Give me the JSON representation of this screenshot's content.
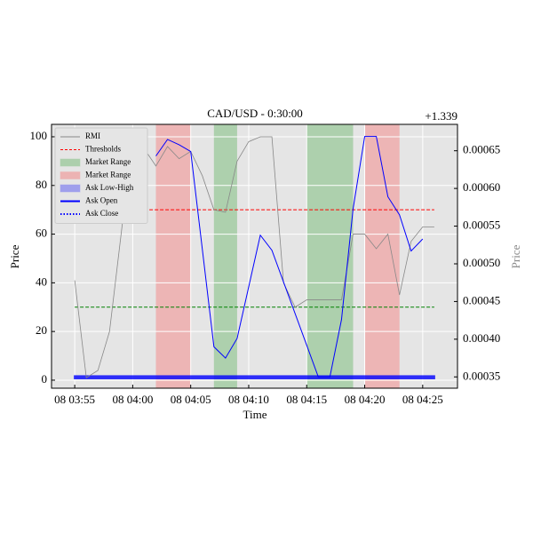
{
  "chart_data": {
    "type": "line",
    "title": "CAD/USD - 0:30:00",
    "offset_label": "+1.339",
    "xlabel": "Time",
    "ylabel": "Price",
    "y2label": "Price",
    "legend": "upper left",
    "grid": true,
    "xlim": [
      "08 03:53",
      "08 04:28"
    ],
    "xticks": [
      "08 03:55",
      "08 04:00",
      "08 04:05",
      "08 04:10",
      "08 04:15",
      "08 04:20",
      "08 04:25"
    ],
    "ylim": [
      -3.3,
      105.1
    ],
    "yticks": [
      0,
      20,
      40,
      60,
      80,
      100
    ],
    "y2lim": [
      0.000335,
      0.000685
    ],
    "y2ticks": [
      0.00035,
      {
        "value": 0.0004,
        "label": "0.00040"
      },
      0.00045,
      {
        "value": 0.0005,
        "label": "0.00050"
      },
      0.00055,
      {
        "value": 0.0006,
        "label": "0.00060"
      },
      0.00065
    ],
    "spans": [
      {
        "name": "Market Range",
        "color": "#2ca02c",
        "ranges": [
          [
            "08 04:07",
            "08 04:09"
          ],
          [
            "08 04:15",
            "08 04:19"
          ]
        ]
      },
      {
        "name": "Market Range",
        "color": "#ff4444",
        "ranges": [
          [
            "08 04:02",
            "08 04:05"
          ],
          [
            "08 04:20",
            "08 04:23"
          ]
        ]
      }
    ],
    "thresholds": {
      "name": "Thresholds",
      "lines": [
        {
          "value": 70,
          "color": "#ff0000"
        },
        {
          "value": 30,
          "color": "#008000"
        }
      ]
    },
    "ask_low_high": {
      "name": "Ask Low-High",
      "color": "#0000ff",
      "x": [
        "08 03:55",
        "08 04:26"
      ],
      "low": 0.000348,
      "high": 0.000351
    },
    "ask_close": {
      "name": "Ask Close",
      "color": "#0000ff"
    },
    "series": [
      {
        "name": "RMI",
        "color": "#888888",
        "x": [
          "08 03:55",
          "08 03:56",
          "08 03:57",
          "08 03:58",
          "08 03:59",
          "08 04:00",
          "08 04:01",
          "08 04:02",
          "08 04:03",
          "08 04:04",
          "08 04:05",
          "08 04:06",
          "08 04:07",
          "08 04:08",
          "08 04:09",
          "08 04:10",
          "08 04:11",
          "08 04:12",
          "08 04:13",
          "08 04:14",
          "08 04:15",
          "08 04:16",
          "08 04:17",
          "08 04:18",
          "08 04:19",
          "08 04:20",
          "08 04:21",
          "08 04:22",
          "08 04:23",
          "08 04:24",
          "08 04:25",
          "08 04:26"
        ],
        "values": [
          41,
          1,
          4,
          20,
          60,
          100,
          95,
          88,
          96,
          91,
          94,
          84,
          70,
          69,
          90,
          98,
          100,
          100,
          40,
          30,
          33,
          33,
          33,
          33,
          60,
          60,
          54,
          60,
          35,
          57,
          63,
          63
        ]
      },
      {
        "name": "Ask Open",
        "color": "#0000ff",
        "axis": "y2",
        "x": [
          "08 04:02",
          "08 04:03",
          "08 04:04",
          "08 04:05",
          "08 04:07",
          "08 04:08",
          "08 04:09",
          "08 04:11",
          "08 04:12",
          "08 04:16",
          "08 04:17",
          "08 04:18",
          "08 04:19",
          "08 04:20",
          "08 04:21",
          "08 04:22",
          "08 04:23",
          "08 04:24",
          "08 04:25"
        ],
        "values": [
          0.000643,
          0.000665,
          0.000658,
          0.000649,
          0.00039,
          0.000375,
          0.000401,
          0.000538,
          0.000518,
          0.00035,
          0.00035,
          0.000426,
          0.000573,
          0.000669,
          0.000669,
          0.000589,
          0.000565,
          0.000517,
          0.000533
        ]
      }
    ]
  }
}
